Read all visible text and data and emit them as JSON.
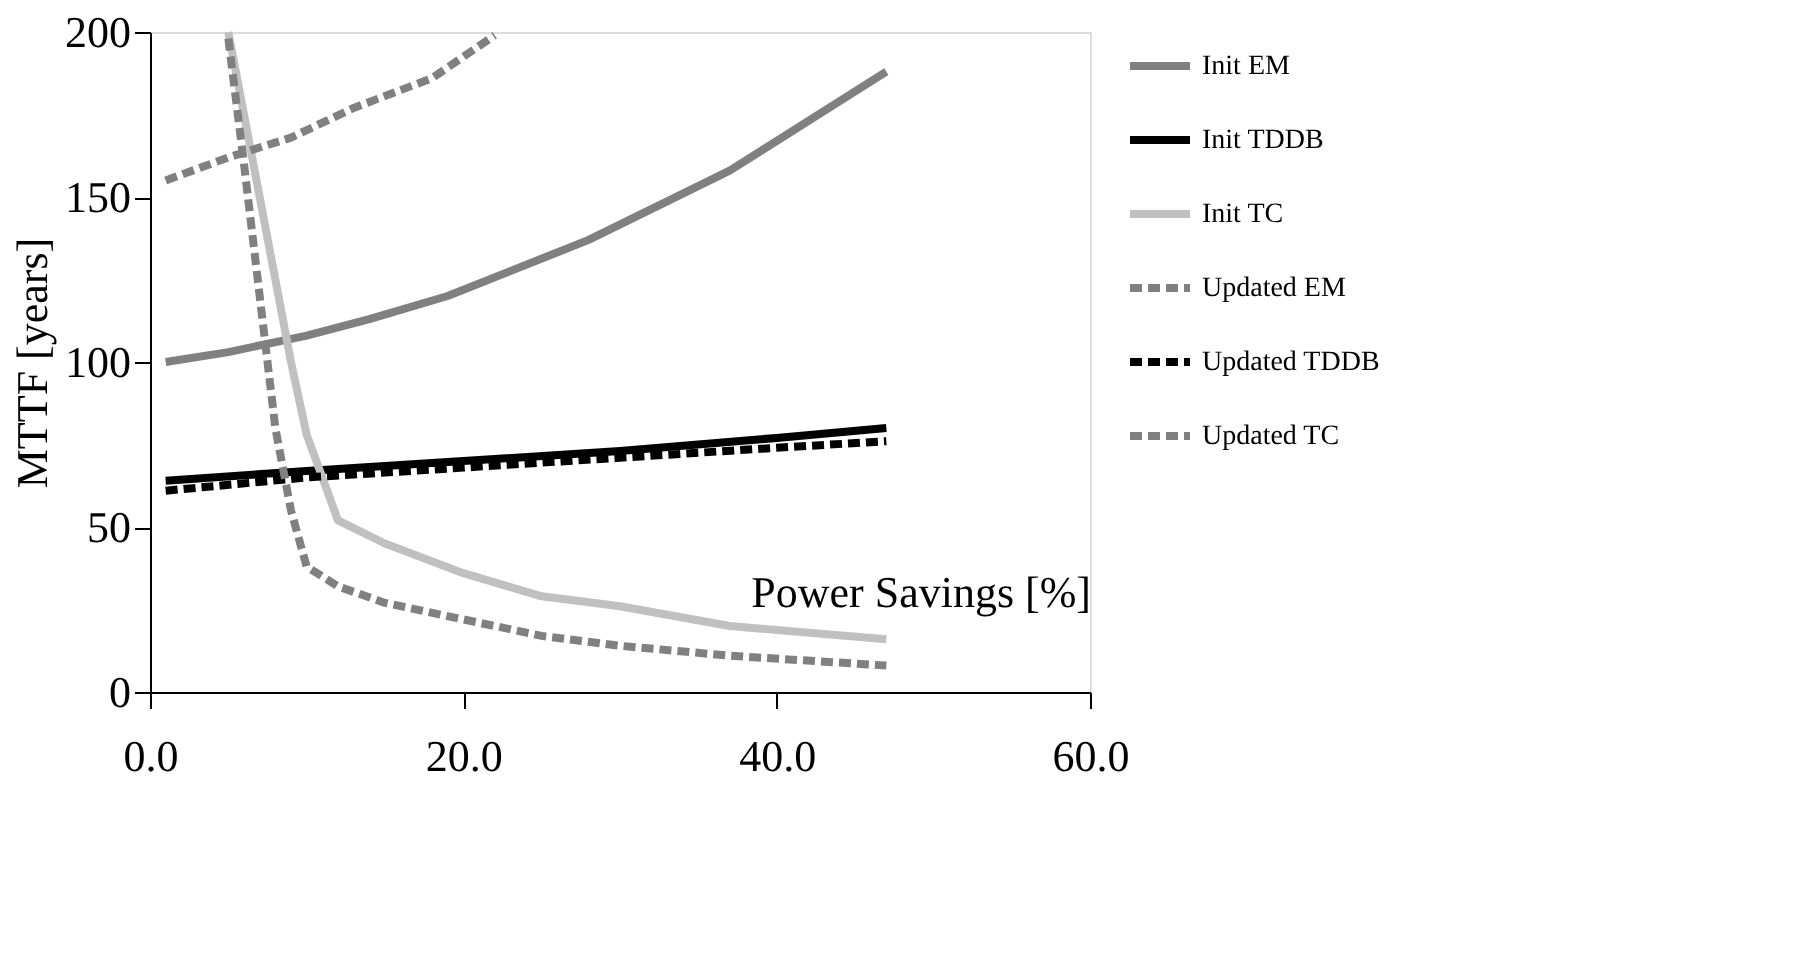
{
  "chart_data": {
    "type": "line",
    "xlabel": "Power Savings [%]",
    "ylabel": "MTTF [years]",
    "xlim": [
      0,
      60
    ],
    "xticks": [
      {
        "value": 0,
        "label": "0.0"
      },
      {
        "value": 20,
        "label": "20.0"
      },
      {
        "value": 40,
        "label": "40.0"
      },
      {
        "value": 60,
        "label": "60.0"
      }
    ],
    "ylim": [
      0,
      200
    ],
    "yticks": [
      0,
      50,
      100,
      150,
      200
    ],
    "grid": false,
    "legend": "right",
    "marker": "none",
    "series": [
      {
        "name": "Init EM",
        "color": "#808080",
        "line_style": "solid",
        "x": [
          1,
          5,
          10,
          14,
          19,
          28,
          37,
          47
        ],
        "values": [
          100,
          103,
          108,
          113,
          120,
          137,
          158,
          188
        ]
      },
      {
        "name": "Init TDDB",
        "color": "#000000",
        "line_style": "solid",
        "x": [
          1,
          10,
          20,
          30,
          40,
          47
        ],
        "values": [
          64,
          67,
          70,
          73,
          77,
          80
        ]
      },
      {
        "name": "Init TC",
        "color": "#c0c0c0",
        "line_style": "solid",
        "x": [
          5,
          7,
          9,
          10,
          12,
          15,
          20,
          25,
          30,
          37,
          47
        ],
        "values": [
          200,
          150,
          100,
          78,
          52,
          45,
          36,
          29,
          26,
          20,
          16
        ]
      },
      {
        "name": "Updated EM",
        "color": "#808080",
        "line_style": "dashed",
        "x": [
          1,
          5,
          9,
          13,
          18,
          22
        ],
        "values": [
          155,
          162,
          168,
          177,
          186,
          199
        ]
      },
      {
        "name": "Updated TDDB",
        "color": "#000000",
        "line_style": "dashed",
        "x": [
          1,
          10,
          20,
          30,
          40,
          47
        ],
        "values": [
          61,
          65,
          68,
          71,
          74,
          76
        ]
      },
      {
        "name": "Updated TC",
        "color": "#808080",
        "line_style": "dashed",
        "x": [
          5,
          6,
          7,
          8,
          9,
          10,
          12,
          15,
          20,
          25,
          30,
          37,
          47
        ],
        "values": [
          198,
          160,
          120,
          80,
          55,
          38,
          32,
          27,
          22,
          17,
          14,
          11,
          8
        ]
      }
    ]
  }
}
